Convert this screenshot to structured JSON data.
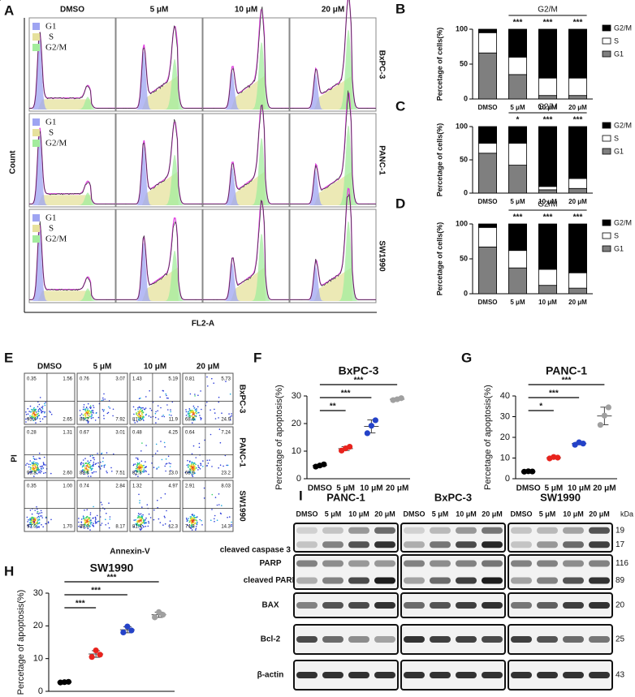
{
  "chart_data": [
    {
      "type": "stacked_bar",
      "title": "G2/M",
      "categories": [
        "DMSO",
        "5 μM",
        "10 μM",
        "20 μM"
      ],
      "series": [
        {
          "name": "G1",
          "color": "#7f7f7f",
          "values": [
            66,
            35,
            5,
            5
          ]
        },
        {
          "name": "S",
          "color": "#ffffff",
          "values": [
            29,
            25,
            25,
            25
          ]
        },
        {
          "name": "G2/M",
          "color": "#000000",
          "values": [
            5,
            40,
            70,
            70
          ]
        }
      ],
      "ylim": [
        0,
        100
      ],
      "yticks": [
        0,
        50,
        100
      ],
      "ylabel": "Percetage of cells(%)",
      "annotations": [
        "***",
        "***",
        "***"
      ]
    },
    {
      "type": "stacked_bar",
      "title": "G2/M",
      "categories": [
        "DMSO",
        "5 μM",
        "10 μM",
        "20 μM"
      ],
      "series": [
        {
          "name": "G1",
          "color": "#7f7f7f",
          "values": [
            60,
            42,
            5,
            7
          ]
        },
        {
          "name": "S",
          "color": "#ffffff",
          "values": [
            15,
            33,
            5,
            15
          ]
        },
        {
          "name": "G2/M",
          "color": "#000000",
          "values": [
            25,
            25,
            90,
            78
          ]
        }
      ],
      "ylim": [
        0,
        100
      ],
      "yticks": [
        0,
        50,
        100
      ],
      "ylabel": "Percetage of cells(%)",
      "annotations": [
        "*",
        "***",
        "***"
      ]
    },
    {
      "type": "stacked_bar",
      "title": "G2/M",
      "categories": [
        "DMSO",
        "5 μM",
        "10 μM",
        "20 μM"
      ],
      "series": [
        {
          "name": "G1",
          "color": "#7f7f7f",
          "values": [
            67,
            37,
            12,
            8
          ]
        },
        {
          "name": "S",
          "color": "#ffffff",
          "values": [
            28,
            25,
            23,
            22
          ]
        },
        {
          "name": "G2/M",
          "color": "#000000",
          "values": [
            5,
            38,
            65,
            70
          ]
        }
      ],
      "ylim": [
        0,
        100
      ],
      "yticks": [
        0,
        50,
        100
      ],
      "ylabel": "Percetage of cells(%)",
      "annotations": [
        "***",
        "***",
        "***"
      ]
    },
    {
      "type": "dot_scatter",
      "title": "BxPC-3",
      "categories": [
        "DMSO",
        "5 μM",
        "10 μM",
        "20 μM"
      ],
      "values": [
        [
          4.4,
          4.8,
          5.2
        ],
        [
          10.2,
          11,
          11.6
        ],
        [
          16.5,
          19.2,
          21.2
        ],
        [
          28.5,
          28.8,
          29.2
        ]
      ],
      "colors": [
        "#000000",
        "#e8231d",
        "#2442c8",
        "#a0a0a0"
      ],
      "ylim": [
        0,
        30
      ],
      "yticks": [
        0,
        10,
        20,
        30
      ],
      "ylabel": "Percetage of apoptosis(%)",
      "comparisons": [
        "**",
        "***",
        "***"
      ]
    },
    {
      "type": "dot_scatter",
      "title": "PANC-1",
      "categories": [
        "DMSO",
        "5 μM",
        "10 μM",
        "20 μM"
      ],
      "values": [
        [
          3.4,
          3.6,
          3.5
        ],
        [
          9.8,
          10.5,
          10.2
        ],
        [
          16.4,
          17.6,
          17
        ],
        [
          26,
          30.5,
          34.5
        ]
      ],
      "colors": [
        "#000000",
        "#e8231d",
        "#2442c8",
        "#a0a0a0"
      ],
      "ylim": [
        0,
        40
      ],
      "yticks": [
        0,
        10,
        20,
        30,
        40
      ],
      "ylabel": "Percetage of apoptosis(%)",
      "comparisons": [
        "*",
        "***",
        "***"
      ]
    },
    {
      "type": "dot_scatter",
      "title": "SW1990",
      "categories": [
        "DMSO",
        "5 μM",
        "10 μM",
        "20 μM"
      ],
      "values": [
        [
          2.7,
          2.8,
          2.9
        ],
        [
          10.5,
          12.5,
          11.2
        ],
        [
          18,
          19.8,
          18.6
        ],
        [
          22.6,
          24.2,
          23.4
        ]
      ],
      "colors": [
        "#000000",
        "#e8231d",
        "#2442c8",
        "#a0a0a0"
      ],
      "ylim": [
        0,
        30
      ],
      "yticks": [
        0,
        10,
        20,
        30
      ],
      "ylabel": "Percetage of apoptosis(%)",
      "comparisons": [
        "***",
        "***",
        "***"
      ]
    }
  ],
  "panel_labels": [
    "A",
    "B",
    "C",
    "D",
    "E",
    "F",
    "G",
    "H",
    "I"
  ],
  "flow": {
    "conditions": [
      "DMSO",
      "5 μM",
      "10 μM",
      "20 μM"
    ],
    "cell_lines": [
      "BxPC-3",
      "PANC-1",
      "SW1990"
    ],
    "legend": [
      "G1",
      "S",
      "G2/M"
    ],
    "ylabel": "Count",
    "xlabel": "FL2-A"
  },
  "dotplot": {
    "conditions": [
      "DMSO",
      "5 μM",
      "10 μM",
      "20 μM"
    ],
    "cell_lines": [
      "BxPC-3",
      "PANC-1",
      "SW1990"
    ],
    "ylabel": "PI",
    "xlabel": "Annexin-V",
    "quadrants": [
      [
        [
          "0.35",
          "1.56",
          "95.4",
          "2.65"
        ],
        [
          "0.76",
          "3.07",
          "88.2",
          "7.92"
        ],
        [
          "1.43",
          "5.19",
          "81.5",
          "11.9"
        ],
        [
          "0.81",
          "5.73",
          "68.6",
          "24.9"
        ]
      ],
      [
        [
          "0.28",
          "1.31",
          "95.8",
          "2.60"
        ],
        [
          "0.67",
          "3.01",
          "88.8",
          "7.51"
        ],
        [
          "0.48",
          "4.25",
          "82.3",
          "13.0"
        ],
        [
          "0.64",
          "7.24",
          "68.9",
          "23.2"
        ]
      ],
      [
        [
          "0.35",
          "1.00",
          "97.0",
          "1.70"
        ],
        [
          "0.74",
          "2.84",
          "88.3",
          "8.17"
        ],
        [
          "1.32",
          "4.97",
          "81.4",
          "12.3"
        ],
        [
          "2.91",
          "8.03",
          "74.8",
          "14.3"
        ]
      ]
    ]
  },
  "blot": {
    "cell_lines": [
      "PANC-1",
      "BxPC-3",
      "SW1990"
    ],
    "lanes": [
      "DMSO",
      "5 μM",
      "10 μM",
      "20 μM"
    ],
    "unit": "kDa",
    "rows": [
      {
        "labels": [
          "cleaved caspase 3"
        ],
        "kda": [
          19,
          17
        ]
      },
      {
        "labels": [
          "PARP",
          "cleaved PARP"
        ],
        "kda": [
          116,
          89
        ]
      },
      {
        "labels": [
          "BAX"
        ],
        "kda": [
          20
        ]
      },
      {
        "labels": [
          "Bcl-2"
        ],
        "kda": [
          25
        ]
      },
      {
        "labels": [
          "β-actin"
        ],
        "kda": [
          43
        ]
      }
    ]
  }
}
